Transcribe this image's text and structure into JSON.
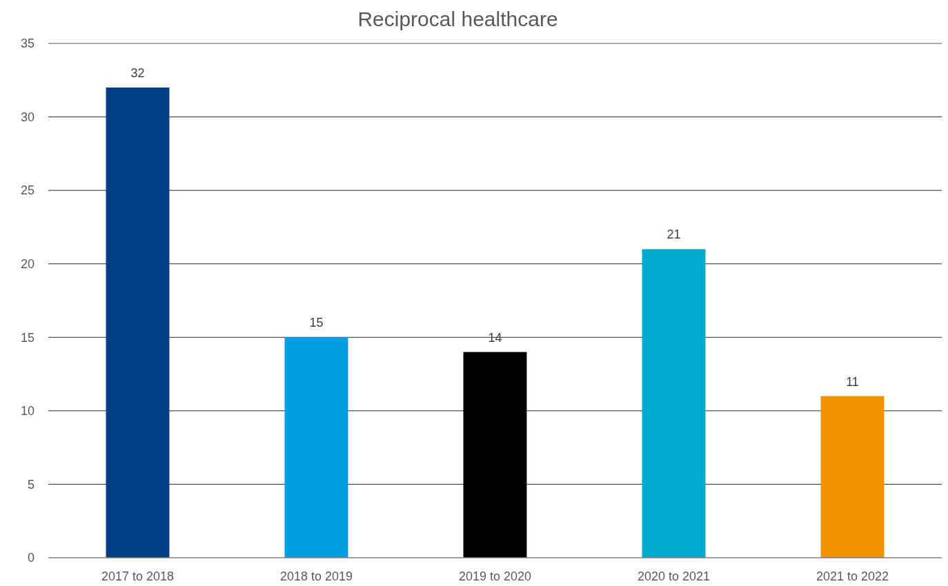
{
  "chart_data": {
    "type": "bar",
    "title": "Reciprocal healthcare",
    "categories": [
      "2017 to 2018",
      "2018 to 2019",
      "2019 to 2020",
      "2020 to 2021",
      "2021 to 2022"
    ],
    "values": [
      32,
      15,
      14,
      21,
      11
    ],
    "colors": [
      "#003f84",
      "#009fe3",
      "#000000",
      "#00aacd",
      "#f29100"
    ],
    "ylim": [
      0,
      35
    ],
    "yticks": [
      0,
      5,
      10,
      15,
      20,
      25,
      30,
      35
    ],
    "grid": "y",
    "data_labels": true
  }
}
